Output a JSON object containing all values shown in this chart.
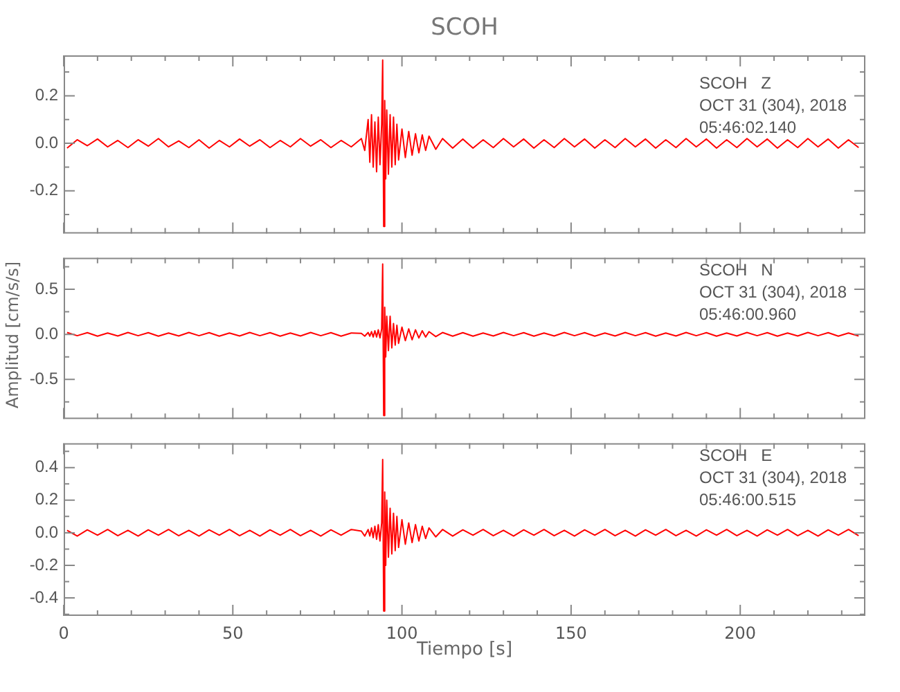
{
  "chart_data": [
    {
      "type": "line",
      "title": "SCOH",
      "annotations": [
        "SCOH   Z",
        "OCT 31 (304), 2018",
        "05:46:02.140"
      ],
      "x": [
        1,
        4,
        7,
        10,
        13,
        16,
        19,
        22,
        25,
        28,
        31,
        34,
        37,
        40,
        43,
        46,
        49,
        52,
        55,
        58,
        61,
        64,
        67,
        70,
        73,
        76,
        79,
        82,
        85,
        88,
        89,
        90,
        90.5,
        91,
        91.5,
        92,
        92.5,
        93,
        93.5,
        94,
        94.3,
        94.6,
        94.9,
        95.2,
        95.5,
        96,
        96.5,
        97,
        97.5,
        98,
        98.5,
        99,
        100,
        101,
        102,
        103,
        104,
        105,
        106,
        107,
        108,
        110,
        112,
        115,
        118,
        121,
        124,
        127,
        130,
        133,
        136,
        139,
        142,
        145,
        148,
        151,
        154,
        157,
        160,
        163,
        166,
        169,
        172,
        175,
        178,
        181,
        184,
        187,
        190,
        193,
        196,
        199,
        202,
        205,
        208,
        211,
        214,
        217,
        220,
        223,
        226,
        229,
        232,
        235
      ],
      "series": [
        {
          "color": "#ff0000",
          "values": [
            -0.02,
            0.015,
            -0.01,
            0.018,
            -0.015,
            0.012,
            -0.018,
            0.015,
            -0.012,
            0.02,
            -0.015,
            0.01,
            -0.018,
            0.015,
            -0.02,
            0.012,
            -0.015,
            0.018,
            -0.012,
            0.015,
            -0.018,
            0.012,
            -0.015,
            0.02,
            -0.012,
            0.015,
            -0.018,
            0.012,
            -0.015,
            0.02,
            -0.03,
            0.1,
            -0.08,
            0.12,
            -0.1,
            0.09,
            -0.12,
            0.11,
            -0.09,
            0.08,
            0.35,
            -0.35,
            0.18,
            -0.15,
            0.14,
            -0.13,
            0.12,
            -0.1,
            0.11,
            -0.09,
            0.08,
            -0.07,
            0.06,
            -0.06,
            0.05,
            -0.05,
            0.04,
            -0.04,
            0.035,
            -0.03,
            0.03,
            -0.025,
            0.02,
            -0.02,
            0.018,
            -0.02,
            0.015,
            -0.018,
            0.02,
            -0.015,
            0.018,
            -0.02,
            0.015,
            -0.018,
            0.02,
            -0.015,
            0.018,
            -0.02,
            0.015,
            -0.018,
            0.02,
            -0.015,
            0.018,
            -0.02,
            0.015,
            -0.018,
            0.02,
            -0.015,
            0.018,
            -0.02,
            0.015,
            -0.018,
            0.02,
            -0.015,
            0.018,
            -0.02,
            0.015,
            -0.018,
            0.02,
            -0.015,
            0.018,
            -0.02,
            0.015,
            -0.018
          ]
        }
      ],
      "xlim": [
        0,
        237
      ],
      "xticks": [
        0,
        {
          "value": 10,
          "label": null
        },
        {
          "value": 20,
          "label": null
        },
        {
          "value": 30,
          "label": null
        },
        {
          "value": 40,
          "label": null
        },
        50,
        {
          "value": 60,
          "label": null
        },
        {
          "value": 70,
          "label": null
        },
        {
          "value": 80,
          "label": null
        },
        {
          "value": 90,
          "label": null
        },
        100,
        {
          "value": 110,
          "label": null
        },
        {
          "value": 120,
          "label": null
        },
        {
          "value": 130,
          "label": null
        },
        {
          "value": 140,
          "label": null
        },
        150,
        {
          "value": 160,
          "label": null
        },
        {
          "value": 170,
          "label": null
        },
        {
          "value": 180,
          "label": null
        },
        {
          "value": 190,
          "label": null
        },
        200,
        {
          "value": 210,
          "label": null
        },
        {
          "value": 220,
          "label": null
        },
        {
          "value": 230,
          "label": null
        }
      ],
      "ylim": [
        -0.38,
        0.37
      ],
      "yticks": [
        {
          "value": -0.3,
          "label": null
        },
        -0.2,
        {
          "value": -0.1,
          "label": null
        },
        {
          "value": 0,
          "label": "0.0"
        },
        {
          "value": 0.1,
          "label": null
        },
        0.2,
        {
          "value": 0.3,
          "label": null
        }
      ],
      "tick_labels": "y"
    },
    {
      "type": "line",
      "ylabel": "Amplitud [cm/s/s]",
      "annotations": [
        "SCOH   N",
        "OCT 31 (304), 2018",
        "05:46:00.960"
      ],
      "x": [
        1,
        4,
        7,
        10,
        13,
        16,
        19,
        22,
        25,
        28,
        31,
        34,
        37,
        40,
        43,
        46,
        49,
        52,
        55,
        58,
        61,
        64,
        67,
        70,
        73,
        76,
        79,
        82,
        85,
        88,
        89,
        90,
        90.5,
        91,
        91.5,
        92,
        92.5,
        93,
        93.5,
        94,
        94.3,
        94.6,
        94.9,
        95.2,
        95.5,
        96,
        96.5,
        97,
        97.5,
        98,
        98.5,
        99,
        100,
        101,
        102,
        103,
        104,
        105,
        106,
        107,
        108,
        110,
        112,
        115,
        118,
        121,
        124,
        127,
        130,
        133,
        136,
        139,
        142,
        145,
        148,
        151,
        154,
        157,
        160,
        163,
        166,
        169,
        172,
        175,
        178,
        181,
        184,
        187,
        190,
        193,
        196,
        199,
        202,
        205,
        208,
        211,
        214,
        217,
        220,
        223,
        226,
        229,
        232,
        235
      ],
      "series": [
        {
          "color": "#ff0000",
          "values": [
            0.02,
            -0.015,
            0.018,
            -0.02,
            0.015,
            -0.018,
            0.02,
            -0.015,
            0.018,
            -0.02,
            0.015,
            -0.018,
            0.02,
            -0.015,
            0.018,
            -0.02,
            0.015,
            -0.018,
            0.02,
            -0.015,
            0.018,
            -0.02,
            0.015,
            -0.018,
            0.02,
            -0.015,
            0.018,
            -0.02,
            0.015,
            0.01,
            -0.02,
            0.02,
            -0.02,
            0.03,
            -0.03,
            0.04,
            -0.03,
            0.05,
            -0.04,
            0.06,
            0.78,
            -0.9,
            0.3,
            -0.25,
            0.2,
            -0.18,
            0.2,
            -0.15,
            0.12,
            -0.12,
            0.1,
            -0.1,
            0.08,
            -0.07,
            0.06,
            -0.06,
            0.05,
            -0.04,
            0.04,
            -0.03,
            0.03,
            -0.025,
            0.02,
            -0.02,
            0.018,
            -0.02,
            0.015,
            -0.018,
            0.02,
            -0.015,
            0.018,
            -0.02,
            0.015,
            -0.018,
            0.02,
            -0.015,
            0.018,
            -0.02,
            0.015,
            -0.018,
            0.02,
            -0.015,
            0.018,
            -0.02,
            0.015,
            -0.018,
            0.02,
            -0.015,
            0.018,
            -0.02,
            0.015,
            -0.018,
            0.02,
            -0.015,
            0.018,
            -0.02,
            0.015,
            -0.018,
            0.02,
            -0.015,
            0.018,
            -0.02,
            0.015,
            -0.018
          ]
        }
      ],
      "xlim": [
        0,
        237
      ],
      "xticks": [
        0,
        {
          "value": 10,
          "label": null
        },
        {
          "value": 20,
          "label": null
        },
        {
          "value": 30,
          "label": null
        },
        {
          "value": 40,
          "label": null
        },
        50,
        {
          "value": 60,
          "label": null
        },
        {
          "value": 70,
          "label": null
        },
        {
          "value": 80,
          "label": null
        },
        {
          "value": 90,
          "label": null
        },
        100,
        {
          "value": 110,
          "label": null
        },
        {
          "value": 120,
          "label": null
        },
        {
          "value": 130,
          "label": null
        },
        {
          "value": 140,
          "label": null
        },
        150,
        {
          "value": 160,
          "label": null
        },
        {
          "value": 170,
          "label": null
        },
        {
          "value": 180,
          "label": null
        },
        {
          "value": 190,
          "label": null
        },
        200,
        {
          "value": 210,
          "label": null
        },
        {
          "value": 220,
          "label": null
        },
        {
          "value": 230,
          "label": null
        }
      ],
      "ylim": [
        -0.94,
        0.85
      ],
      "yticks": [
        {
          "value": -0.75,
          "label": null
        },
        -0.5,
        {
          "value": -0.25,
          "label": null
        },
        {
          "value": 0,
          "label": "0.0"
        },
        {
          "value": 0.25,
          "label": null
        },
        0.5,
        {
          "value": 0.75,
          "label": null
        }
      ],
      "tick_labels": "y"
    },
    {
      "type": "line",
      "xlabel": "Tiempo [s]",
      "annotations": [
        "SCOH   E",
        "OCT 31 (304), 2018",
        "05:46:00.515"
      ],
      "x": [
        1,
        4,
        7,
        10,
        13,
        16,
        19,
        22,
        25,
        28,
        31,
        34,
        37,
        40,
        43,
        46,
        49,
        52,
        55,
        58,
        61,
        64,
        67,
        70,
        73,
        76,
        79,
        82,
        85,
        88,
        89,
        90,
        90.5,
        91,
        91.5,
        92,
        92.5,
        93,
        93.5,
        94,
        94.3,
        94.6,
        94.9,
        95.2,
        95.5,
        96,
        96.5,
        97,
        97.5,
        98,
        98.5,
        99,
        100,
        101,
        102,
        103,
        104,
        105,
        106,
        107,
        108,
        110,
        112,
        115,
        118,
        121,
        124,
        127,
        130,
        133,
        136,
        139,
        142,
        145,
        148,
        151,
        154,
        157,
        160,
        163,
        166,
        169,
        172,
        175,
        178,
        181,
        184,
        187,
        190,
        193,
        196,
        199,
        202,
        205,
        208,
        211,
        214,
        217,
        220,
        223,
        226,
        229,
        232,
        235
      ],
      "series": [
        {
          "color": "#ff0000",
          "values": [
            0.015,
            -0.02,
            0.018,
            -0.015,
            0.02,
            -0.018,
            0.015,
            -0.02,
            0.018,
            -0.015,
            0.02,
            -0.018,
            0.015,
            -0.02,
            0.018,
            -0.015,
            0.02,
            -0.018,
            0.015,
            -0.02,
            0.018,
            -0.015,
            0.02,
            -0.018,
            0.015,
            -0.02,
            0.018,
            -0.015,
            0.02,
            0.01,
            -0.02,
            0.02,
            -0.02,
            0.03,
            -0.03,
            0.04,
            -0.04,
            0.05,
            -0.05,
            0.06,
            0.45,
            -0.48,
            0.25,
            -0.2,
            0.2,
            -0.15,
            0.15,
            -0.13,
            0.12,
            -0.11,
            0.1,
            -0.09,
            0.08,
            -0.07,
            0.06,
            -0.06,
            0.05,
            -0.05,
            0.04,
            -0.035,
            0.03,
            -0.025,
            0.02,
            -0.02,
            0.018,
            -0.015,
            0.02,
            -0.018,
            0.015,
            -0.02,
            0.018,
            -0.015,
            0.02,
            -0.018,
            0.015,
            -0.02,
            0.018,
            -0.015,
            0.02,
            -0.018,
            0.015,
            -0.02,
            0.018,
            -0.015,
            0.02,
            -0.018,
            0.015,
            -0.02,
            0.018,
            -0.015,
            0.02,
            -0.018,
            0.015,
            -0.02,
            0.018,
            -0.015,
            0.02,
            -0.018,
            0.015,
            -0.02,
            0.018,
            -0.015,
            0.02,
            -0.018
          ]
        }
      ],
      "xlim": [
        0,
        237
      ],
      "xticks": [
        0,
        {
          "value": 10,
          "label": null
        },
        {
          "value": 20,
          "label": null
        },
        {
          "value": 30,
          "label": null
        },
        {
          "value": 40,
          "label": null
        },
        50,
        {
          "value": 60,
          "label": null
        },
        {
          "value": 70,
          "label": null
        },
        {
          "value": 80,
          "label": null
        },
        {
          "value": 90,
          "label": null
        },
        100,
        {
          "value": 110,
          "label": null
        },
        {
          "value": 120,
          "label": null
        },
        {
          "value": 130,
          "label": null
        },
        {
          "value": 140,
          "label": null
        },
        150,
        {
          "value": 160,
          "label": null
        },
        {
          "value": 170,
          "label": null
        },
        {
          "value": 180,
          "label": null
        },
        {
          "value": 190,
          "label": null
        },
        200,
        {
          "value": 210,
          "label": null
        },
        {
          "value": 220,
          "label": null
        },
        {
          "value": 230,
          "label": null
        }
      ],
      "ylim": [
        -0.51,
        0.55
      ],
      "yticks": [
        {
          "value": -0.5,
          "label": null
        },
        -0.4,
        {
          "value": -0.3,
          "label": null
        },
        -0.2,
        {
          "value": -0.1,
          "label": null
        },
        {
          "value": 0,
          "label": "0.0"
        },
        {
          "value": 0.1,
          "label": null
        },
        0.2,
        {
          "value": 0.3,
          "label": null
        },
        0.4,
        {
          "value": 0.5,
          "label": null
        }
      ]
    }
  ]
}
